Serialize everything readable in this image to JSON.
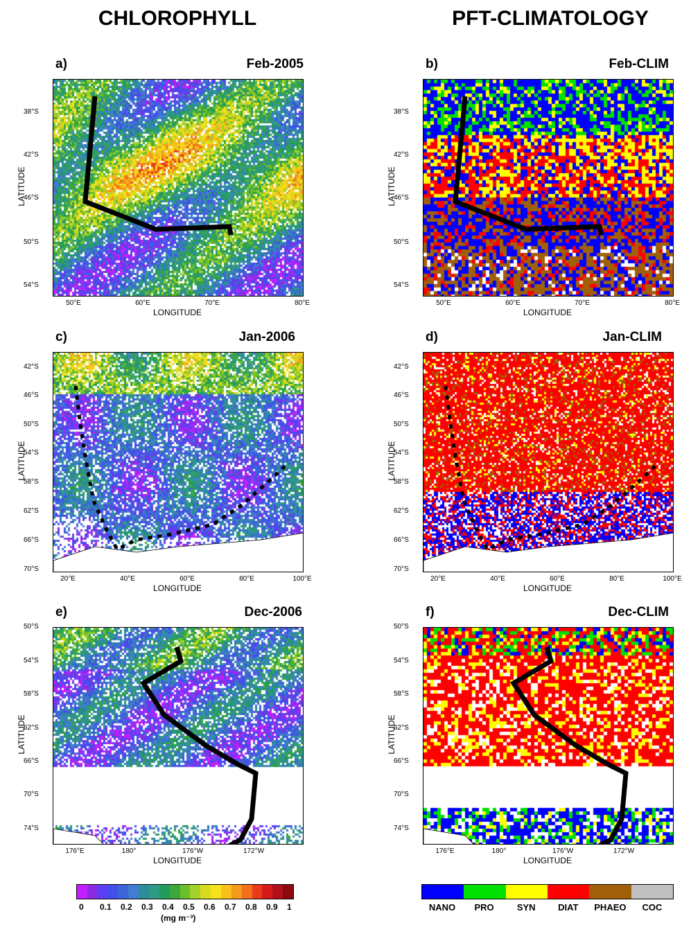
{
  "columns": {
    "left_title": "CHLOROPHYLL",
    "right_title": "PFT-CLIMATOLOGY"
  },
  "panels": [
    {
      "id": "a",
      "label": "a)",
      "date": "Feb-2005",
      "kind": "chl",
      "region": 0
    },
    {
      "id": "b",
      "label": "b)",
      "date": "Feb-CLIM",
      "kind": "pft",
      "region": 0
    },
    {
      "id": "c",
      "label": "c)",
      "date": "Jan-2006",
      "kind": "chl",
      "region": 1
    },
    {
      "id": "d",
      "label": "d)",
      "date": "Jan-CLIM",
      "kind": "pft",
      "region": 1
    },
    {
      "id": "e",
      "label": "e)",
      "date": "Dec-2006",
      "kind": "chl",
      "region": 2
    },
    {
      "id": "f",
      "label": "f)",
      "date": "Dec-CLIM",
      "kind": "pft",
      "region": 2
    }
  ],
  "regions": [
    {
      "lat_ticks": [
        "38°S",
        "42°S",
        "46°S",
        "50°S",
        "54°S"
      ],
      "lon_ticks": [
        "50°E",
        "60°E",
        "70°E",
        "80°E"
      ],
      "xlabel": "LONGITUDE",
      "ylabel": "LATITUDE"
    },
    {
      "lat_ticks": [
        "42°S",
        "46°S",
        "50°S",
        "54°S",
        "58°S",
        "62°S",
        "66°S",
        "70°S"
      ],
      "lon_ticks": [
        "20°E",
        "40°E",
        "60°E",
        "80°E",
        "100°E"
      ],
      "xlabel": "LONGITUDE",
      "ylabel": "LATITUDE"
    },
    {
      "lat_ticks": [
        "50°S",
        "54°S",
        "58°S",
        "62°S",
        "66°S",
        "70°S",
        "74°S"
      ],
      "lon_ticks": [
        "176°E",
        "180°",
        "176°W",
        "172°W"
      ],
      "xlabel": "LONGITUDE",
      "ylabel": "LATITUDE"
    }
  ],
  "chl_colorbar": {
    "tick_labels": [
      "0",
      "0.1",
      "0.2",
      "0.3",
      "0.4",
      "0.5",
      "0.6",
      "0.7",
      "0.8",
      "0.9",
      "1"
    ],
    "units": "(mg m⁻³)",
    "colors": [
      "#c21fff",
      "#8a2be2",
      "#5b3ff5",
      "#4050e8",
      "#3a66d8",
      "#3f7ed0",
      "#2e8b9a",
      "#2e9b84",
      "#239b5a",
      "#3aa83c",
      "#6bbf2a",
      "#a6d12a",
      "#d9dc1e",
      "#f5e21a",
      "#f6c21a",
      "#f59a1a",
      "#f2701a",
      "#ea3a1a",
      "#d61a1a",
      "#b0101a",
      "#8a0a10"
    ]
  },
  "pft_legend": [
    {
      "name": "NANO",
      "color": "#0000ff"
    },
    {
      "name": "PRO",
      "color": "#00e000"
    },
    {
      "name": "SYN",
      "color": "#ffff00"
    },
    {
      "name": "DIAT",
      "color": "#ff0000"
    },
    {
      "name": "PHAEO",
      "color": "#a0600a"
    },
    {
      "name": "COC",
      "color": "#c0c0c0"
    }
  ]
}
